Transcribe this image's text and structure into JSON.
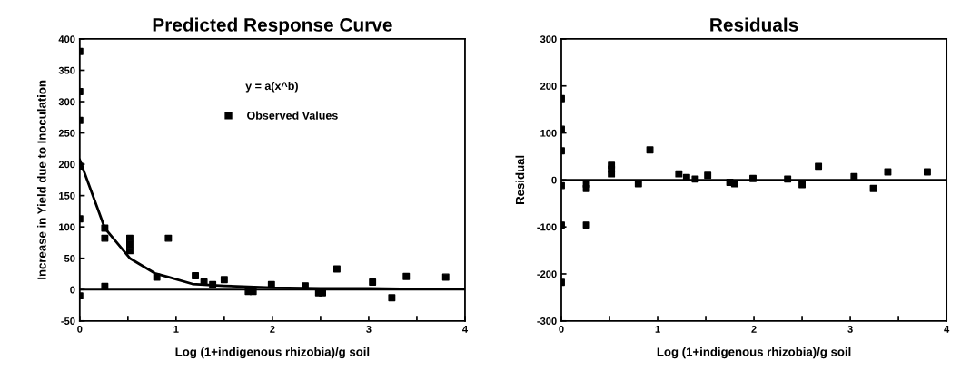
{
  "chart_data": [
    {
      "type": "scatter",
      "title": "Predicted Response Curve",
      "xlabel": "Log (1+indigenous rhizobia)/g soil",
      "ylabel": "Increase in Yield due to Inoculation",
      "annotations": [
        "y = a(x^b)"
      ],
      "legend": "top",
      "marker": "square",
      "xlim": [
        0,
        4
      ],
      "xticks": [
        0,
        {
          "value": 0.5,
          "label": null
        },
        1,
        {
          "value": 1.5,
          "label": null
        },
        2,
        {
          "value": 2.5,
          "label": null
        },
        3,
        {
          "value": 3.5,
          "label": null
        },
        4
      ],
      "ylim": [
        -50,
        400
      ],
      "yticks": [
        -50,
        0,
        50,
        100,
        150,
        200,
        250,
        300,
        350,
        400
      ],
      "ref_lines": [
        {
          "axis": "y",
          "value": 0,
          "color": "#000000"
        }
      ],
      "series": [
        {
          "name": "Observed Values",
          "color": "#000000",
          "x": [
            0,
            0,
            0,
            0,
            0,
            0,
            0.26,
            0.26,
            0.26,
            0.52,
            0.52,
            0.52,
            0.8,
            0.92,
            1.2,
            1.29,
            1.38,
            1.5,
            1.75,
            1.8,
            1.99,
            2.34,
            2.48,
            2.52,
            2.67,
            3.04,
            3.24,
            3.39,
            3.8
          ],
          "values": [
            380,
            316,
            270,
            197,
            113,
            -10,
            98,
            82,
            5,
            82,
            72,
            62,
            20,
            82,
            22,
            12,
            8,
            16,
            -3,
            -3,
            8,
            6,
            -5,
            -5,
            33,
            12,
            -13,
            21,
            20
          ]
        },
        {
          "type": "line",
          "marker": "none",
          "color": "#000000",
          "x": [
            0,
            0.26,
            0.52,
            0.78,
            0.92,
            1.17,
            1.5,
            2,
            2.5,
            3,
            3.5,
            4
          ],
          "values": [
            207,
            98,
            50,
            26,
            20,
            9,
            6,
            3,
            2,
            2,
            1,
            1
          ]
        }
      ]
    },
    {
      "type": "scatter",
      "title": "Residuals",
      "xlabel": "Log (1+indigenous rhizobia)/g soil",
      "ylabel": "Residual",
      "marker": "square",
      "xlim": [
        0,
        4
      ],
      "xticks": [
        0,
        {
          "value": 0.5,
          "label": null
        },
        1,
        {
          "value": 1.5,
          "label": null
        },
        2,
        {
          "value": 2.5,
          "label": null
        },
        3,
        {
          "value": 3.5,
          "label": null
        },
        4
      ],
      "ylim": [
        -300,
        300
      ],
      "yticks": [
        -300,
        -200,
        -100,
        0,
        100,
        200,
        300
      ],
      "ref_lines": [
        {
          "axis": "y",
          "value": 0,
          "color": "#000000"
        }
      ],
      "series": [
        {
          "color": "#000000",
          "x": [
            0,
            0,
            0,
            0,
            0,
            0,
            0.26,
            0.26,
            0.26,
            0.52,
            0.52,
            0.52,
            0.8,
            0.92,
            1.22,
            1.3,
            1.39,
            1.52,
            1.75,
            1.8,
            1.99,
            2.35,
            2.5,
            2.67,
            3.04,
            3.24,
            3.39,
            3.8
          ],
          "values": [
            173,
            108,
            62,
            -12,
            -96,
            -218,
            -9,
            -18,
            -96,
            31,
            23,
            13,
            -8,
            64,
            13,
            5,
            2,
            10,
            -5,
            -8,
            3,
            2,
            -10,
            29,
            7,
            -18,
            17,
            17
          ]
        }
      ]
    }
  ]
}
